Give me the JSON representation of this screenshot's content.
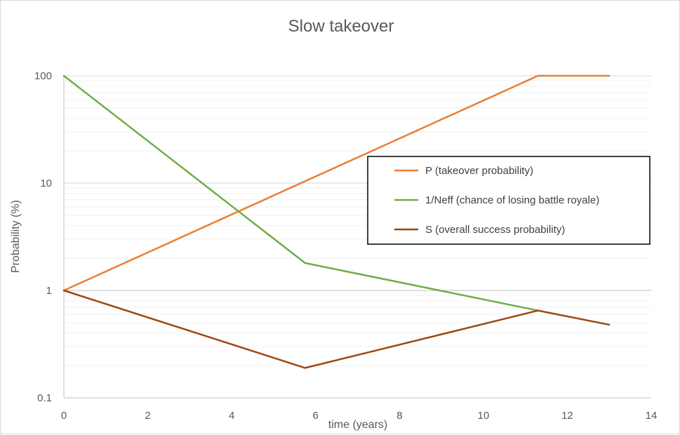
{
  "chart_data": {
    "type": "line",
    "title": "Slow takeover",
    "xlabel": "time (years)",
    "ylabel": "Probability (%)",
    "xlim": [
      0,
      14
    ],
    "ylim": [
      0.1,
      100
    ],
    "y_scale": "log",
    "x_ticks": [
      "0",
      "2",
      "4",
      "6",
      "8",
      "10",
      "12",
      "14"
    ],
    "y_ticks": [
      "0.1",
      "1",
      "10",
      "100"
    ],
    "grid": true,
    "legend_position": "right",
    "series": [
      {
        "name": "P (takeover probability)",
        "color": "#ED7D31",
        "x": [
          0,
          11.3,
          13
        ],
        "y": [
          1,
          100,
          100
        ]
      },
      {
        "name": "1/Neff (chance of losing battle royale)",
        "color": "#70AD47",
        "x": [
          0,
          5.75,
          11.3
        ],
        "y": [
          100,
          1.8,
          0.65
        ]
      },
      {
        "name": "S (overall success probability)",
        "color": "#9E480E",
        "x": [
          0,
          5.75,
          11.3,
          13
        ],
        "y": [
          1,
          0.19,
          0.65,
          0.48
        ]
      }
    ]
  }
}
